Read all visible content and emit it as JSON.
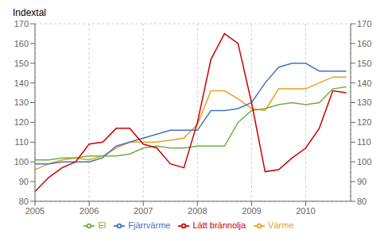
{
  "chart_data": {
    "type": "line",
    "ylabel": "Indextal",
    "x": [
      2005.0,
      2005.25,
      2005.5,
      2005.75,
      2006.0,
      2006.25,
      2006.5,
      2006.75,
      2007.0,
      2007.25,
      2007.5,
      2007.75,
      2008.0,
      2008.25,
      2008.5,
      2008.75,
      2009.0,
      2009.25,
      2009.5,
      2009.75,
      2010.0,
      2010.25,
      2010.5,
      2010.75
    ],
    "series": [
      {
        "name": "Värme",
        "color": "#E8A020",
        "values": [
          96,
          99,
          101,
          102,
          101,
          103,
          107,
          110,
          110,
          110,
          111,
          112,
          119,
          136,
          136,
          132,
          127,
          126,
          137,
          137,
          137,
          140,
          143,
          143
        ]
      },
      {
        "name": "Fjärrvärme",
        "color": "#4472C4",
        "values": [
          99,
          99,
          100,
          100,
          100,
          102,
          108,
          110,
          112,
          114,
          116,
          116,
          116,
          126,
          126,
          127,
          130,
          140,
          148,
          150,
          150,
          146,
          146,
          146
        ]
      },
      {
        "name": "El",
        "color": "#70AD47",
        "values": [
          101,
          101,
          102,
          102,
          103,
          103,
          103,
          104,
          107,
          108,
          107,
          107,
          108,
          108,
          108,
          120,
          126,
          127,
          129,
          130,
          129,
          130,
          137,
          138
        ]
      },
      {
        "name": "Lätt brännolja",
        "color": "#CC0000",
        "values": [
          85,
          92,
          97,
          100,
          109,
          110,
          117,
          117,
          109,
          107,
          99,
          97,
          120,
          152,
          165,
          160,
          130,
          95,
          96,
          102,
          107,
          117,
          136,
          135
        ]
      }
    ],
    "xlim": [
      2005.0,
      2010.83
    ],
    "xticks": [
      2005,
      2006,
      2007,
      2008,
      2009,
      2010
    ],
    "ylim": [
      80,
      170
    ],
    "yticks": [
      80,
      90,
      100,
      110,
      120,
      130,
      140,
      150,
      160,
      170
    ],
    "y2lim": [
      80,
      170
    ],
    "y2ticks": [
      80,
      90,
      100,
      110,
      120,
      130,
      140,
      150,
      160,
      170
    ],
    "grid": true,
    "legend": "bottom"
  }
}
